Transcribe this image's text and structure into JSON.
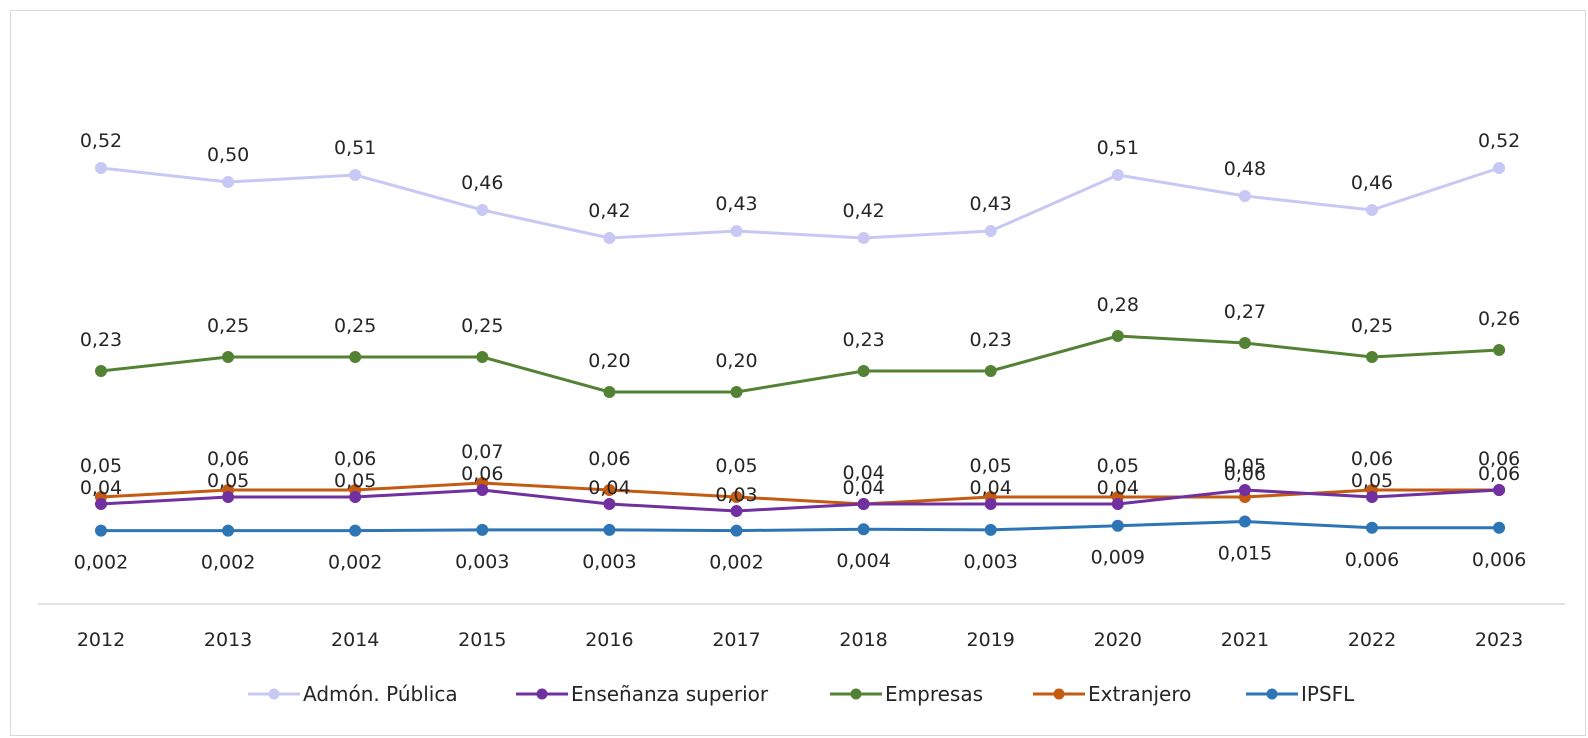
{
  "chart_data": {
    "type": "line",
    "title": "",
    "xlabel": "",
    "ylabel": "",
    "x": [
      "2012",
      "2013",
      "2014",
      "2015",
      "2016",
      "2017",
      "2018",
      "2019",
      "2020",
      "2021",
      "2022",
      "2023"
    ],
    "grid": false,
    "legend_position": "bottom",
    "series": [
      {
        "name": "Admón. Pública",
        "color": "#c8c8f5",
        "values": [
          0.52,
          0.5,
          0.51,
          0.46,
          0.42,
          0.43,
          0.42,
          0.43,
          0.51,
          0.48,
          0.46,
          0.52
        ],
        "labels": [
          "0,52",
          "0,50",
          "0,51",
          "0,46",
          "0,42",
          "0,43",
          "0,42",
          "0,43",
          "0,51",
          "0,48",
          "0,46",
          "0,52"
        ]
      },
      {
        "name": "Enseñanza superior",
        "color": "#7030a0",
        "values": [
          0.04,
          0.05,
          0.05,
          0.06,
          0.04,
          0.03,
          0.04,
          0.04,
          0.04,
          0.06,
          0.05,
          0.06
        ],
        "labels": [
          "0,04",
          "0,05",
          "0,05",
          "0,06",
          "0,04",
          "0,03",
          "0,04",
          "0,04",
          "0,04",
          "0,06",
          "0,05",
          "0,06"
        ]
      },
      {
        "name": "Empresas",
        "color": "#548235",
        "values": [
          0.23,
          0.25,
          0.25,
          0.25,
          0.2,
          0.2,
          0.23,
          0.23,
          0.28,
          0.27,
          0.25,
          0.26
        ],
        "labels": [
          "0,23",
          "0,25",
          "0,25",
          "0,25",
          "0,20",
          "0,20",
          "0,23",
          "0,23",
          "0,28",
          "0,27",
          "0,25",
          "0,26"
        ]
      },
      {
        "name": "Extranjero",
        "color": "#c55a11",
        "values": [
          0.05,
          0.06,
          0.06,
          0.07,
          0.06,
          0.05,
          0.04,
          0.05,
          0.05,
          0.05,
          0.06,
          0.06
        ],
        "labels": [
          "0,05",
          "0,06",
          "0,06",
          "0,07",
          "0,06",
          "0,05",
          "0,04",
          "0,05",
          "0,05",
          "0,05",
          "0,06",
          "0,06"
        ]
      },
      {
        "name": "IPSFL",
        "color": "#2e75b6",
        "values": [
          0.002,
          0.002,
          0.002,
          0.003,
          0.003,
          0.002,
          0.004,
          0.003,
          0.009,
          0.015,
          0.006,
          0.006
        ],
        "labels": [
          "0,002",
          "0,002",
          "0,002",
          "0,003",
          "0,003",
          "0,002",
          "0,004",
          "0,003",
          "0,009",
          "0,015",
          "0,006",
          "0,006"
        ]
      }
    ]
  }
}
